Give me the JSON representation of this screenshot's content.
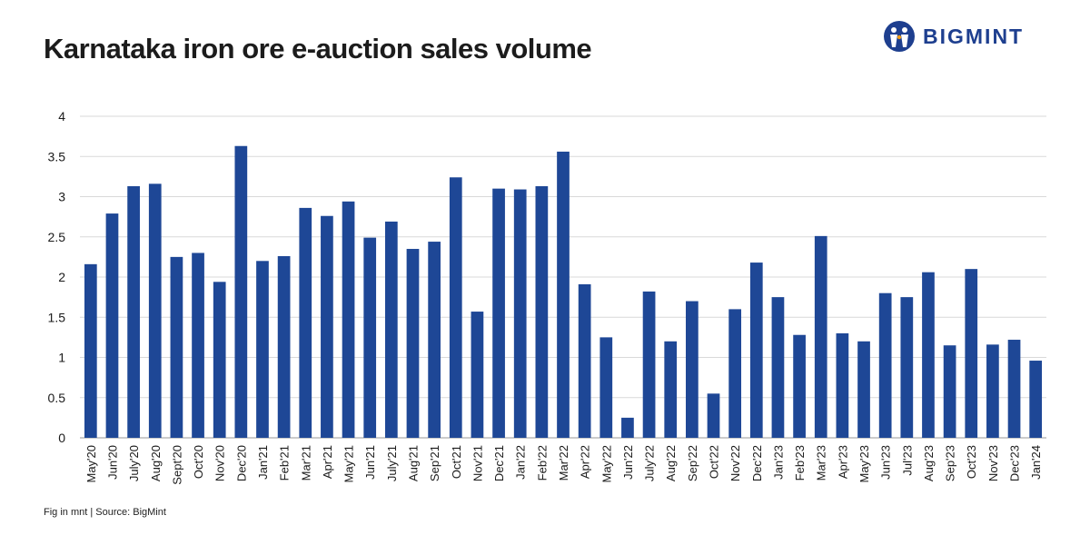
{
  "brand": {
    "name": "BIGMINT",
    "logo_icon": "bigmint-logo-icon",
    "color": "#1e3f8f"
  },
  "footer": {
    "text": "Fig in mnt | Source: BigMint"
  },
  "chart_data": {
    "type": "bar",
    "title": "Karnataka iron ore e-auction sales volume",
    "xlabel": "",
    "ylabel": "",
    "ylim": [
      0,
      4
    ],
    "yticks": [
      "0",
      "0.5",
      "1",
      "1.5",
      "2",
      "2.5",
      "3",
      "3.5",
      "4"
    ],
    "grid": true,
    "legend": "none",
    "bar_color": "#1e4796",
    "categories": [
      "May'20",
      "Jun'20",
      "July'20",
      "Aug'20",
      "Sept'20",
      "Oct'20",
      "Nov'20",
      "Dec'20",
      "Jan'21",
      "Feb'21",
      "Mar'21",
      "Apr'21",
      "May'21",
      "Jun'21",
      "July'21",
      "Aug'21",
      "Sep'21",
      "Oct'21",
      "Nov'21",
      "Dec'21",
      "Jan'22",
      "Feb'22",
      "Mar'22",
      "Apr'22",
      "May'22",
      "Jun'22",
      "July'22",
      "Aug'22",
      "Sep'22",
      "Oct'22",
      "Nov'22",
      "Dec'22",
      "Jan'23",
      "Feb'23",
      "Mar'23",
      "Apr'23",
      "May'23",
      "Jun'23",
      "Jul'23",
      "Aug'23",
      "Sep'23",
      "Oct'23",
      "Nov'23",
      "Dec'23",
      "Jan'24"
    ],
    "values": [
      2.16,
      2.79,
      3.13,
      3.16,
      2.25,
      2.3,
      1.94,
      3.63,
      2.2,
      2.26,
      2.86,
      2.76,
      2.94,
      2.49,
      2.69,
      2.35,
      2.44,
      3.24,
      1.57,
      3.1,
      3.09,
      3.13,
      3.56,
      1.91,
      1.25,
      0.25,
      1.82,
      1.2,
      1.7,
      0.55,
      1.6,
      2.18,
      1.75,
      1.28,
      2.51,
      1.3,
      1.2,
      1.8,
      1.75,
      2.06,
      1.15,
      2.1,
      1.16,
      1.22,
      0.96
    ]
  }
}
